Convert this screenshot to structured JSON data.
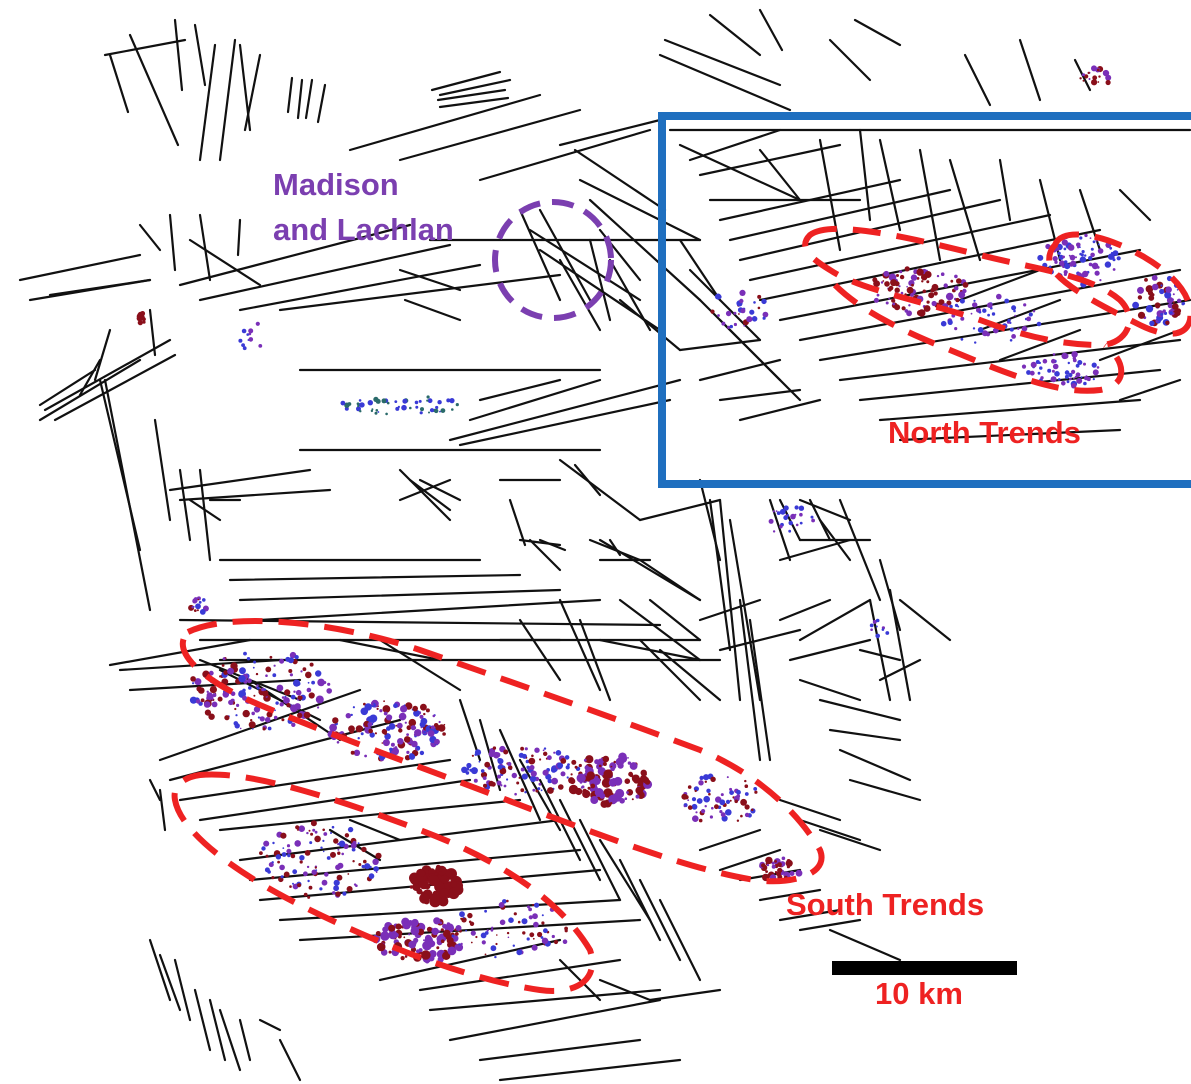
{
  "map": {
    "labels": {
      "madison_line1": "Madison",
      "madison_line2": "and Lachlan",
      "north": "North Trends",
      "south": "South Trends"
    },
    "scale_bar": {
      "label": "10 km"
    },
    "colors": {
      "lineaments": "#111111",
      "inset_box": "#1f6fbf",
      "trend_outline": "#ee2222",
      "madison_outline": "#7b3fb0",
      "points_purple": "#7a2fb8",
      "points_blue": "#3a3ad6",
      "points_darkred": "#8a0f1a",
      "points_teal": "#2a6a6a",
      "label_red": "#ee2222",
      "label_purple": "#7b3fb0"
    }
  }
}
